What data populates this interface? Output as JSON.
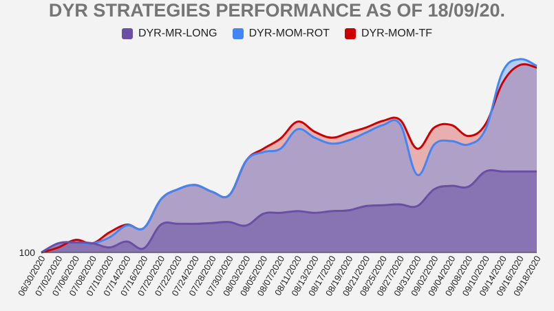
{
  "chart_data": {
    "type": "area",
    "title": "DYR STRATEGIES PERFORMANCE AS OF 18/09/20.",
    "xlabel": "",
    "ylabel": "",
    "y_tick_labels": [
      "100"
    ],
    "x_tick_labels": [
      "06/30/2020",
      "07/02/2020",
      "07/06/2020",
      "07/08/2020",
      "07/10/2020",
      "07/14/2020",
      "07/16/2020",
      "07/20/2020",
      "07/22/2020",
      "07/24/2020",
      "07/28/2020",
      "07/30/2020",
      "08/03/2020",
      "08/05/2020",
      "08/07/2020",
      "08/11/2020",
      "08/13/2020",
      "08/17/2020",
      "08/19/2020",
      "08/21/2020",
      "08/25/2020",
      "08/27/2020",
      "08/31/2020",
      "09/02/2020",
      "09/04/2020",
      "09/08/2020",
      "09/10/2020",
      "09/14/2020",
      "09/16/2020",
      "09/18/2020"
    ],
    "ylim": [
      100,
      122.9
    ],
    "grid": false,
    "legend_position": "top",
    "series": [
      {
        "name": "DYR-MR-LONG",
        "color": "#6a4fa3",
        "fill": "rgba(106,79,163,0.55)",
        "values": [
          100,
          101.1,
          101.2,
          101.1,
          100.6,
          101.3,
          100.5,
          103.3,
          103.4,
          103.4,
          103.5,
          103.6,
          103.2,
          104.6,
          104.7,
          104.9,
          104.7,
          104.9,
          105,
          105.5,
          105.6,
          105.7,
          105.5,
          107.5,
          107.9,
          107.8,
          109.6,
          109.6,
          109.6,
          109.6
        ]
      },
      {
        "name": "DYR-MOM-ROT",
        "color": "#4285f4",
        "fill": "rgba(66,133,244,0.35)",
        "values": [
          100,
          101.1,
          101.2,
          101.1,
          101.8,
          103.2,
          102.9,
          106.3,
          107.5,
          108,
          107.2,
          106.8,
          110.9,
          111.9,
          112.3,
          114.6,
          113.6,
          112.9,
          113.3,
          114.2,
          115.1,
          115.2,
          109.2,
          112.8,
          113.2,
          112.8,
          114.6,
          121.4,
          122.9,
          122.1
        ]
      },
      {
        "name": "DYR-MOM-TF",
        "color": "#cc0000",
        "fill": "rgba(204,0,0,0.28)",
        "values": [
          100,
          100.6,
          101.5,
          101.1,
          102.4,
          103.3,
          102.9,
          106.3,
          107.5,
          108,
          107.2,
          106.8,
          110.9,
          112.3,
          113.5,
          115.5,
          114.3,
          113.6,
          114.2,
          114.8,
          115.6,
          115.7,
          112.3,
          114.8,
          115.1,
          113.8,
          115.2,
          120.1,
          122.2,
          121.9
        ]
      }
    ]
  }
}
